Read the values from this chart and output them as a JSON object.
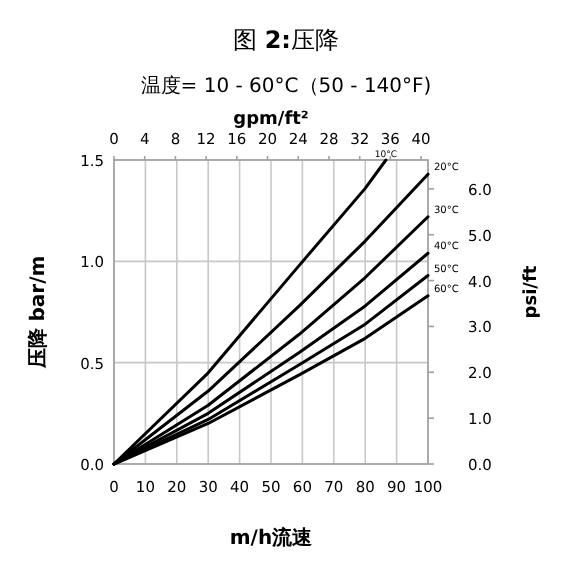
{
  "chart_data": {
    "type": "line",
    "title": "图 **2:**压降",
    "subtitle": "温度= 10 - 60°C（50 - 140°F)",
    "xlabel": "m/h流速",
    "ylabel": "压降 bar/m",
    "y2label": "psi/ft",
    "x2label": "gpm/ft²",
    "xlim": [
      0,
      100
    ],
    "xticks": [
      0,
      10,
      20,
      30,
      40,
      50,
      60,
      70,
      80,
      90,
      100
    ],
    "ylim": [
      0,
      1.5
    ],
    "yticks": [
      {
        "value": 0,
        "label": "0.0"
      },
      {
        "value": 0.5,
        "label": "0.5"
      },
      {
        "value": 1,
        "label": "1.0"
      },
      {
        "value": 1.5,
        "label": "1.5"
      }
    ],
    "y2lim": [
      0,
      6.63
    ],
    "y2ticks": [
      {
        "value": 0,
        "label": "0.0"
      },
      {
        "value": 1,
        "label": "1.0"
      },
      {
        "value": 2,
        "label": "2.0"
      },
      {
        "value": 3,
        "label": "3.0"
      },
      {
        "value": 4,
        "label": "4.0"
      },
      {
        "value": 5,
        "label": "5.0"
      },
      {
        "value": 6,
        "label": "6.0"
      }
    ],
    "x2lim": [
      0,
      40.9
    ],
    "x2ticks": [
      0,
      4,
      8,
      12,
      16,
      20,
      24,
      28,
      32,
      36,
      40
    ],
    "grid": true,
    "marker": "none",
    "line_style": "solid",
    "series": [
      {
        "name": "10°C",
        "color": "#000000",
        "x": [
          0,
          30,
          59,
          80,
          86.6
        ],
        "values": [
          0,
          0.45,
          0.98,
          1.36,
          1.5
        ]
      },
      {
        "name": "20°C",
        "color": "#000000",
        "x": [
          0,
          30,
          59,
          80,
          100
        ],
        "values": [
          0,
          0.36,
          0.78,
          1.1,
          1.43
        ]
      },
      {
        "name": "30°C",
        "color": "#000000",
        "x": [
          0,
          30,
          59,
          80,
          100
        ],
        "values": [
          0,
          0.29,
          0.64,
          0.92,
          1.22
        ]
      },
      {
        "name": "40°C",
        "color": "#000000",
        "x": [
          0,
          30,
          59,
          80,
          100
        ],
        "values": [
          0,
          0.25,
          0.55,
          0.78,
          1.04
        ]
      },
      {
        "name": "50°C",
        "color": "#000000",
        "x": [
          0,
          30,
          59,
          80,
          100
        ],
        "values": [
          0,
          0.22,
          0.49,
          0.69,
          0.93
        ]
      },
      {
        "name": "60°C",
        "color": "#000000",
        "x": [
          0,
          30,
          59,
          80,
          100
        ],
        "values": [
          0,
          0.2,
          0.44,
          0.62,
          0.83
        ]
      }
    ]
  }
}
